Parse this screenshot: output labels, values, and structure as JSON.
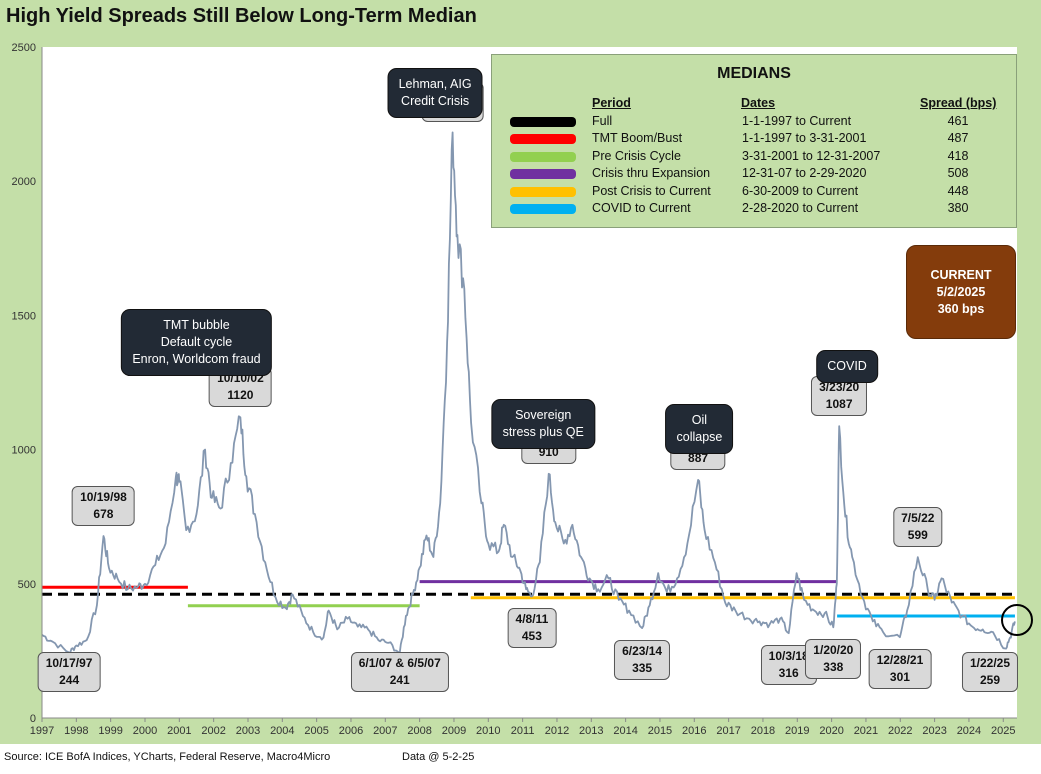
{
  "title": "High Yield Spreads Still Below Long-Term Median",
  "source": "Source: ICE BofA Indices, YCharts, Federal Reserve, Macro4Micro",
  "data_date": "Data @ 5-2-25",
  "colors": {
    "series": "#8497b0",
    "background": "#c4dfa8",
    "plot": "#ffffff"
  },
  "chart_data": {
    "type": "line",
    "title": "High Yield Spreads Still Below Long-Term Median",
    "xlim": [
      1997,
      2025.4
    ],
    "ylim": [
      0,
      2500
    ],
    "x_ticks": [
      "1997",
      "1998",
      "1999",
      "2000",
      "2001",
      "2002",
      "2003",
      "2004",
      "2005",
      "2006",
      "2007",
      "2008",
      "2009",
      "2010",
      "2011",
      "2012",
      "2013",
      "2014",
      "2015",
      "2016",
      "2017",
      "2018",
      "2019",
      "2020",
      "2021",
      "2022",
      "2023",
      "2024",
      "2025"
    ],
    "y_ticks": [
      "0",
      "500",
      "1000",
      "1500",
      "2000",
      "2500"
    ],
    "grid": false,
    "series": [
      {
        "points": [
          [
            1997.0,
            310
          ],
          [
            1997.3,
            285
          ],
          [
            1997.79,
            244
          ],
          [
            1998.0,
            270
          ],
          [
            1998.3,
            290
          ],
          [
            1998.6,
            420
          ],
          [
            1998.79,
            678
          ],
          [
            1998.95,
            560
          ],
          [
            1999.2,
            520
          ],
          [
            1999.5,
            480
          ],
          [
            1999.8,
            490
          ],
          [
            2000.0,
            500
          ],
          [
            2000.3,
            570
          ],
          [
            2000.6,
            650
          ],
          [
            2000.9,
            900
          ],
          [
            2001.0,
            880
          ],
          [
            2001.2,
            700
          ],
          [
            2001.5,
            760
          ],
          [
            2001.75,
            1000
          ],
          [
            2001.95,
            820
          ],
          [
            2002.2,
            780
          ],
          [
            2002.5,
            950
          ],
          [
            2002.78,
            1120
          ],
          [
            2002.95,
            900
          ],
          [
            2003.2,
            760
          ],
          [
            2003.5,
            580
          ],
          [
            2003.8,
            450
          ],
          [
            2004.1,
            410
          ],
          [
            2004.3,
            460
          ],
          [
            2004.6,
            380
          ],
          [
            2004.9,
            320
          ],
          [
            2005.2,
            300
          ],
          [
            2005.35,
            400
          ],
          [
            2005.6,
            330
          ],
          [
            2005.9,
            370
          ],
          [
            2006.2,
            340
          ],
          [
            2006.5,
            330
          ],
          [
            2006.8,
            290
          ],
          [
            2007.1,
            280
          ],
          [
            2007.42,
            241
          ],
          [
            2007.6,
            380
          ],
          [
            2007.8,
            460
          ],
          [
            2008.0,
            560
          ],
          [
            2008.2,
            680
          ],
          [
            2008.4,
            600
          ],
          [
            2008.6,
            800
          ],
          [
            2008.8,
            1400
          ],
          [
            2008.96,
            2182
          ],
          [
            2009.1,
            1800
          ],
          [
            2009.3,
            1600
          ],
          [
            2009.5,
            1100
          ],
          [
            2009.8,
            800
          ],
          [
            2010.0,
            650
          ],
          [
            2010.3,
            620
          ],
          [
            2010.45,
            720
          ],
          [
            2010.7,
            600
          ],
          [
            2010.9,
            560
          ],
          [
            2011.1,
            480
          ],
          [
            2011.27,
            453
          ],
          [
            2011.5,
            580
          ],
          [
            2011.76,
            910
          ],
          [
            2011.95,
            730
          ],
          [
            2012.2,
            650
          ],
          [
            2012.45,
            720
          ],
          [
            2012.7,
            600
          ],
          [
            2012.95,
            520
          ],
          [
            2013.2,
            480
          ],
          [
            2013.5,
            520
          ],
          [
            2013.8,
            440
          ],
          [
            2014.1,
            400
          ],
          [
            2014.48,
            335
          ],
          [
            2014.7,
            420
          ],
          [
            2014.95,
            540
          ],
          [
            2015.2,
            470
          ],
          [
            2015.5,
            520
          ],
          [
            2015.8,
            650
          ],
          [
            2016.11,
            887
          ],
          [
            2016.3,
            700
          ],
          [
            2016.6,
            580
          ],
          [
            2016.9,
            430
          ],
          [
            2017.2,
            400
          ],
          [
            2017.6,
            370
          ],
          [
            2017.9,
            360
          ],
          [
            2018.2,
            350
          ],
          [
            2018.5,
            370
          ],
          [
            2018.75,
            316
          ],
          [
            2018.98,
            540
          ],
          [
            2019.2,
            440
          ],
          [
            2019.5,
            400
          ],
          [
            2019.8,
            390
          ],
          [
            2020.05,
            338
          ],
          [
            2020.15,
            500
          ],
          [
            2020.22,
            1087
          ],
          [
            2020.4,
            750
          ],
          [
            2020.6,
            600
          ],
          [
            2020.9,
            450
          ],
          [
            2021.2,
            360
          ],
          [
            2021.5,
            320
          ],
          [
            2021.99,
            301
          ],
          [
            2022.2,
            400
          ],
          [
            2022.51,
            599
          ],
          [
            2022.8,
            480
          ],
          [
            2023.0,
            440
          ],
          [
            2023.2,
            520
          ],
          [
            2023.5,
            430
          ],
          [
            2023.8,
            380
          ],
          [
            2024.1,
            340
          ],
          [
            2024.4,
            330
          ],
          [
            2024.7,
            320
          ],
          [
            2025.06,
            259
          ],
          [
            2025.2,
            300
          ],
          [
            2025.34,
            360
          ]
        ]
      }
    ],
    "medians": {
      "title": "MEDIANS",
      "headers": {
        "period": "Period",
        "dates": "Dates",
        "spread": "Spread (bps)"
      },
      "rows": [
        {
          "period": "Full",
          "dates": "1-1-1997  to Current",
          "spread": "461",
          "value": 461,
          "color": "#000000",
          "x0": 1997.0,
          "x1": 2025.34,
          "dashed": true
        },
        {
          "period": "TMT Boom/Bust",
          "dates": "1-1-1997  to 3-31-2001",
          "spread": "487",
          "value": 487,
          "color": "#ff0000",
          "x0": 1997.0,
          "x1": 2001.25,
          "dashed": false
        },
        {
          "period": "Pre Crisis Cycle",
          "dates": "3-31-2001  to 12-31-2007",
          "spread": "418",
          "value": 418,
          "color": "#92d050",
          "x0": 2001.25,
          "x1": 2008.0,
          "dashed": false
        },
        {
          "period": "Crisis thru Expansion",
          "dates": "12-31-07  to 2-29-2020",
          "spread": "508",
          "value": 508,
          "color": "#7030a0",
          "x0": 2008.0,
          "x1": 2020.16,
          "dashed": false
        },
        {
          "period": "Post Crisis to Current",
          "dates": "6-30-2009  to Current",
          "spread": "448",
          "value": 448,
          "color": "#ffc000",
          "x0": 2009.49,
          "x1": 2025.34,
          "dashed": false
        },
        {
          "period": "COVID to Current",
          "dates": "2-28-2020  to Current",
          "spread": "380",
          "value": 380,
          "color": "#00b0f0",
          "x0": 2020.16,
          "x1": 2025.34,
          "dashed": false
        }
      ]
    },
    "annotations": [
      {
        "lines": [
          "10/17/97",
          "244"
        ],
        "x": 1997.79,
        "y": 244,
        "below": true
      },
      {
        "lines": [
          "10/19/98",
          "678"
        ],
        "x": 1998.79,
        "y": 678,
        "below": false
      },
      {
        "lines": [
          "10/10/02",
          "1120"
        ],
        "x": 2002.78,
        "y": 1120,
        "below": false
      },
      {
        "lines": [
          "6/1/07 & 6/5/07",
          "241"
        ],
        "x": 2007.42,
        "y": 241,
        "below": true
      },
      {
        "lines": [
          "12/15/08",
          "2182"
        ],
        "x": 2008.96,
        "y": 2182,
        "below": false
      },
      {
        "lines": [
          "4/8/11",
          "453"
        ],
        "x": 2011.27,
        "y": 453,
        "below": true
      },
      {
        "lines": [
          "10/4/11",
          "910"
        ],
        "x": 2011.76,
        "y": 910,
        "below": false
      },
      {
        "lines": [
          "6/23/14",
          "335"
        ],
        "x": 2014.48,
        "y": 335,
        "below": true
      },
      {
        "lines": [
          "2/11/16",
          "887"
        ],
        "x": 2016.11,
        "y": 887,
        "below": false
      },
      {
        "lines": [
          "10/3/18",
          "316"
        ],
        "x": 2018.75,
        "y": 316,
        "below": true
      },
      {
        "lines": [
          "1/20/20",
          "338"
        ],
        "x": 2020.05,
        "y": 338,
        "below": true
      },
      {
        "lines": [
          "3/23/20",
          "1087"
        ],
        "x": 2020.22,
        "y": 1087,
        "below": false
      },
      {
        "lines": [
          "12/28/21",
          "301"
        ],
        "x": 2021.99,
        "y": 301,
        "below": true
      },
      {
        "lines": [
          "7/5/22",
          "599"
        ],
        "x": 2022.51,
        "y": 599,
        "below": false
      },
      {
        "lines": [
          "1/22/25",
          "259"
        ],
        "x": 2025.06,
        "y": 259,
        "below": true
      }
    ],
    "event_boxes": [
      {
        "lines": [
          "TMT bubble",
          "Default cycle",
          "Enron, Worldcom fraud"
        ],
        "x": 2001.5,
        "y": 1525
      },
      {
        "lines": [
          "Lehman, AIG",
          "Credit Crisis"
        ],
        "x": 2008.45,
        "y": 2420
      },
      {
        "lines": [
          "Sovereign",
          "stress plus QE"
        ],
        "x": 2011.6,
        "y": 1190
      },
      {
        "lines": [
          "Oil",
          "collapse"
        ],
        "x": 2016.15,
        "y": 1170
      },
      {
        "lines": [
          "COVID"
        ],
        "x": 2020.45,
        "y": 1370
      }
    ],
    "current": {
      "lines": [
        "CURRENT",
        "5/2/2025",
        "360 bps"
      ],
      "x": 2025.34,
      "y": 360
    }
  }
}
